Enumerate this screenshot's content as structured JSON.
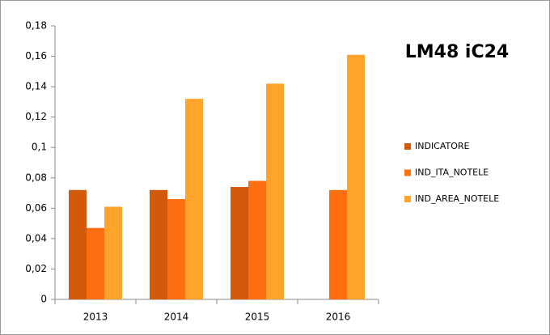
{
  "chart_data": {
    "type": "bar",
    "title": "LM48 iC24",
    "categories": [
      "2013",
      "2014",
      "2015",
      "2016"
    ],
    "series": [
      {
        "name": "INDICATORE",
        "color": "#d25a0a",
        "values": [
          0.072,
          0.072,
          0.074,
          null
        ]
      },
      {
        "name": "IND_ITA_NOTELE",
        "color": "#fd6e10",
        "values": [
          0.047,
          0.066,
          0.078,
          0.072
        ]
      },
      {
        "name": "IND_AREA_NOTELE",
        "color": "#ffa42b",
        "values": [
          0.061,
          0.132,
          0.142,
          0.161
        ]
      }
    ],
    "ylim": [
      0,
      0.18
    ],
    "yticks": [
      0,
      {
        "value": 0.02,
        "label": "0,02"
      },
      {
        "value": 0.04,
        "label": "0,04"
      },
      {
        "value": 0.06,
        "label": "0,06"
      },
      {
        "value": 0.08,
        "label": "0,08"
      },
      {
        "value": 0.1,
        "label": "0,1"
      },
      {
        "value": 0.12,
        "label": "0,12"
      },
      {
        "value": 0.14,
        "label": "0,14"
      },
      {
        "value": 0.16,
        "label": "0,16"
      },
      {
        "value": 0.18,
        "label": "0,18"
      }
    ],
    "grid": false,
    "legend": "right"
  }
}
